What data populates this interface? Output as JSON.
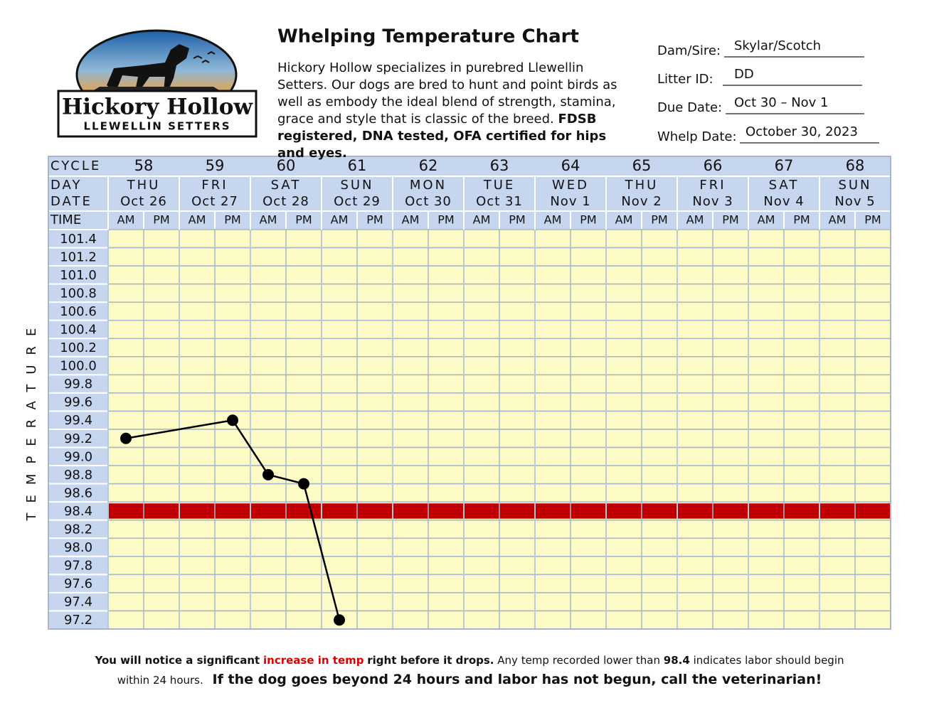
{
  "logo": {
    "name": "Hickory Hollow",
    "tagline": "LLEWELLIN SETTERS"
  },
  "header": {
    "title": "Whelping Temperature Chart",
    "description": "Hickory Hollow specializes in purebred Llewellin Setters. Our dogs are bred to hunt and point birds as well as embody the ideal blend of strength, stamina, grace and style that is classic of the breed.",
    "description_bold": "FDSB registered, DNA tested, OFA certified for hips and eyes."
  },
  "form": {
    "fields": [
      {
        "label": "Dam/Sire:",
        "value": "Skylar/Scotch"
      },
      {
        "label": "Litter ID:",
        "value": "DD"
      },
      {
        "label": "Due Date:",
        "value": "Oct 30 – Nov 1"
      },
      {
        "label": "Whelp Date:",
        "value": "October 30, 2023"
      }
    ]
  },
  "chart_data": {
    "type": "line",
    "row_labels": {
      "cycle": "CYCLE",
      "day": "DAY",
      "date": "DATE",
      "time": "TIME"
    },
    "axis_label": "TEMPERATURE",
    "columns": [
      {
        "cycle": 58,
        "day": "THU",
        "date": "Oct 26"
      },
      {
        "cycle": 59,
        "day": "FRI",
        "date": "Oct 27"
      },
      {
        "cycle": 60,
        "day": "SAT",
        "date": "Oct 28"
      },
      {
        "cycle": 61,
        "day": "SUN",
        "date": "Oct 29"
      },
      {
        "cycle": 62,
        "day": "MON",
        "date": "Oct 30"
      },
      {
        "cycle": 63,
        "day": "TUE",
        "date": "Oct 31"
      },
      {
        "cycle": 64,
        "day": "WED",
        "date": "Nov 1"
      },
      {
        "cycle": 65,
        "day": "THU",
        "date": "Nov 2"
      },
      {
        "cycle": 66,
        "day": "FRI",
        "date": "Nov 3"
      },
      {
        "cycle": 67,
        "day": "SAT",
        "date": "Nov 4"
      },
      {
        "cycle": 68,
        "day": "SUN",
        "date": "Nov 5"
      }
    ],
    "periods": [
      "AM",
      "PM"
    ],
    "series": [
      {
        "color": "#000000",
        "values": [
          99.2,
          null,
          null,
          99.4,
          98.8,
          98.7,
          97.2,
          null,
          null,
          null,
          null,
          null,
          null,
          null,
          null,
          null,
          null,
          null,
          null,
          null,
          null,
          null
        ]
      }
    ],
    "ylim": [
      97.1,
      101.5
    ],
    "yticks": [
      101.4,
      101.2,
      {
        "value": 101,
        "label": "101.0"
      },
      100.8,
      100.6,
      100.4,
      100.2,
      {
        "value": 100,
        "label": "100.0"
      },
      99.8,
      99.6,
      99.4,
      99.2,
      {
        "value": 99,
        "label": "99.0"
      },
      98.8,
      98.6,
      98.4,
      98.2,
      {
        "value": 98,
        "label": "98.0"
      },
      97.8,
      97.6,
      97.4,
      97.2
    ],
    "threshold": 98.4,
    "threshold_color": "#c00000"
  },
  "footer": {
    "part1": "You will notice a significant",
    "part2": "increase in temp",
    "part3": "right before it drops.",
    "part4": "Any temp recorded lower than",
    "part5": "98.4",
    "part6": "indicates labor should begin within 24 hours.",
    "warning": "If the dog goes beyond 24 hours and labor has not begun, call the veterinarian!"
  }
}
